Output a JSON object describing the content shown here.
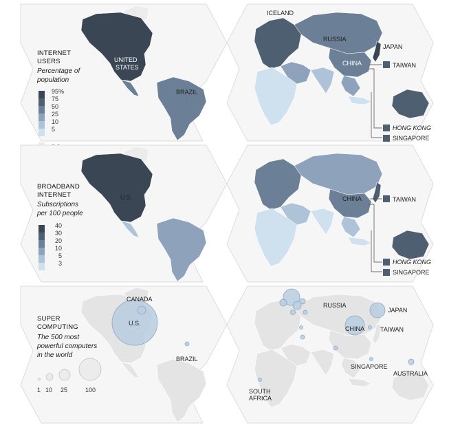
{
  "colors": {
    "scale": [
      "#3a4654",
      "#4f5f72",
      "#6b7f96",
      "#8ea3bb",
      "#afc3d8",
      "#cfe0ef"
    ],
    "na": "#ececec",
    "land_pale": "#e8e8e8",
    "frame": "#f6f6f6",
    "bubble_fill": "#b9cde0",
    "bubble_stroke": "#8ba8c4"
  },
  "panels": [
    {
      "title_lines": [
        "INTERNET",
        "USERS"
      ],
      "subtitle_lines": [
        "Percentage of",
        "population"
      ],
      "legend_ticks": [
        "95%",
        "75",
        "50",
        "25",
        "10",
        "5"
      ],
      "na_label": "n.a",
      "labels": {
        "iceland": "ICELAND",
        "united_states": [
          "UNITED",
          "STATES"
        ],
        "brazil": "BRAZIL",
        "russia": "RUSSIA",
        "china": "CHINA",
        "japan": "JAPAN",
        "taiwan": "TAIWAN",
        "hong_kong": "HONG KONG",
        "singapore": "SINGAPORE"
      }
    },
    {
      "title_lines": [
        "BROADBAND",
        "INTERNET"
      ],
      "subtitle_lines": [
        "Subscriptions",
        "per 100 people"
      ],
      "legend_ticks": [
        "40",
        "30",
        "20",
        "10",
        "5",
        "3"
      ],
      "labels": {
        "us": "U.S.",
        "china": "CHINA",
        "taiwan": "TAIWAN",
        "hong_kong": "HONG KONG",
        "singapore": "SINGAPORE"
      }
    },
    {
      "title_lines": [
        "SUPER",
        "COMPUTING"
      ],
      "subtitle_lines": [
        "The 500 most",
        "powerful computers",
        "in the world"
      ],
      "size_legend": [
        "1",
        "10",
        "25",
        "100"
      ],
      "size_legend_values": [
        1,
        10,
        25,
        100
      ],
      "labels": {
        "canada": "CANADA",
        "us": "U.S.",
        "brazil": "BRAZIL",
        "russia": "RUSSIA",
        "japan": "JAPAN",
        "china": "CHINA",
        "taiwan": "TAIWAN",
        "singapore": "SINGAPORE",
        "australia": "AUSTRALIA",
        "south_africa": [
          "SOUTH",
          "AFRICA"
        ]
      }
    }
  ]
}
